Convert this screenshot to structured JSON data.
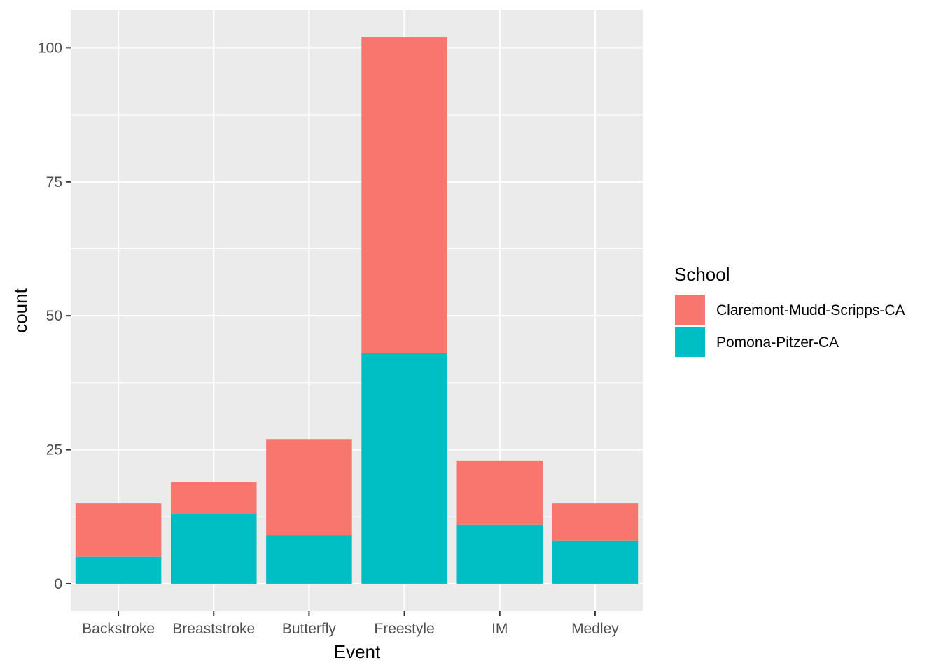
{
  "chart_data": {
    "type": "bar",
    "stacked": true,
    "title": "",
    "xlabel": "Event",
    "ylabel": "count",
    "categories": [
      "Backstroke",
      "Breaststroke",
      "Butterfly",
      "Freestyle",
      "IM",
      "Medley"
    ],
    "series": [
      {
        "name": "Claremont-Mudd-Scripps-CA",
        "color": "#F8766D",
        "values": [
          10,
          6,
          18,
          59,
          12,
          7
        ]
      },
      {
        "name": "Pomona-Pitzer-CA",
        "color": "#00BFC4",
        "values": [
          5,
          13,
          9,
          43,
          11,
          8
        ]
      }
    ],
    "stack_order_bottom_to_top": [
      "Pomona-Pitzer-CA",
      "Claremont-Mudd-Scripps-CA"
    ],
    "ylim": [
      -5.1,
      107.1
    ],
    "yticks": [
      0,
      25,
      50,
      75,
      100
    ],
    "legend": {
      "title": "School",
      "position": "right"
    },
    "grid": true,
    "panel_background": "#EBEBEB",
    "grid_color": "#FFFFFF"
  }
}
